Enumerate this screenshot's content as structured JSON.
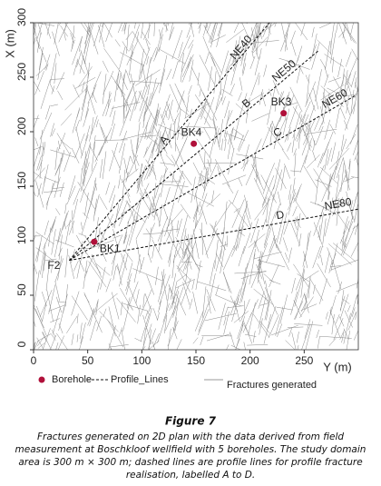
{
  "chart_data": {
    "type": "scatter",
    "x_axis_label": "Y (m)",
    "y_axis_label": "X (m)",
    "xlim": [
      0,
      300
    ],
    "ylim": [
      0,
      300
    ],
    "xticks": [
      0,
      50,
      100,
      150,
      200,
      250
    ],
    "yticks": [
      0,
      50,
      100,
      150,
      200,
      250,
      300
    ],
    "series": [
      {
        "name": "Borehole",
        "color": "#b0103a",
        "x": [
          56,
          148,
          231
        ],
        "values": [
          99,
          189,
          217
        ],
        "labels": [
          "BK1",
          "BK4",
          "BK3"
        ]
      }
    ],
    "origin": {
      "label": "F2",
      "x": 33,
      "y": 82
    },
    "profile_lines": [
      {
        "label": "NE40",
        "letter": "A",
        "x": [
          33,
          218
        ],
        "values": [
          82,
          300
        ]
      },
      {
        "label": "NE50",
        "letter": "B",
        "x": [
          33,
          264
        ],
        "values": [
          82,
          275
        ]
      },
      {
        "label": "NE60",
        "letter": "C",
        "x": [
          33,
          297
        ],
        "values": [
          82,
          233
        ]
      },
      {
        "label": "NE80",
        "letter": "D",
        "x": [
          33,
          300
        ],
        "values": [
          82,
          129
        ]
      }
    ],
    "legend": [
      "Borehole",
      "Profile_Lines",
      "Fractures generated"
    ]
  },
  "caption": {
    "title": "Figure 7",
    "lines": [
      "Fractures generated on 2D plan with the data derived from field",
      "measurement at Boschkloof wellfield with 5 boreholes. The study domain",
      "area is 300 m × 300 m; dashed lines are profile lines for profile fracture",
      "realisation, labelled A to D."
    ]
  }
}
